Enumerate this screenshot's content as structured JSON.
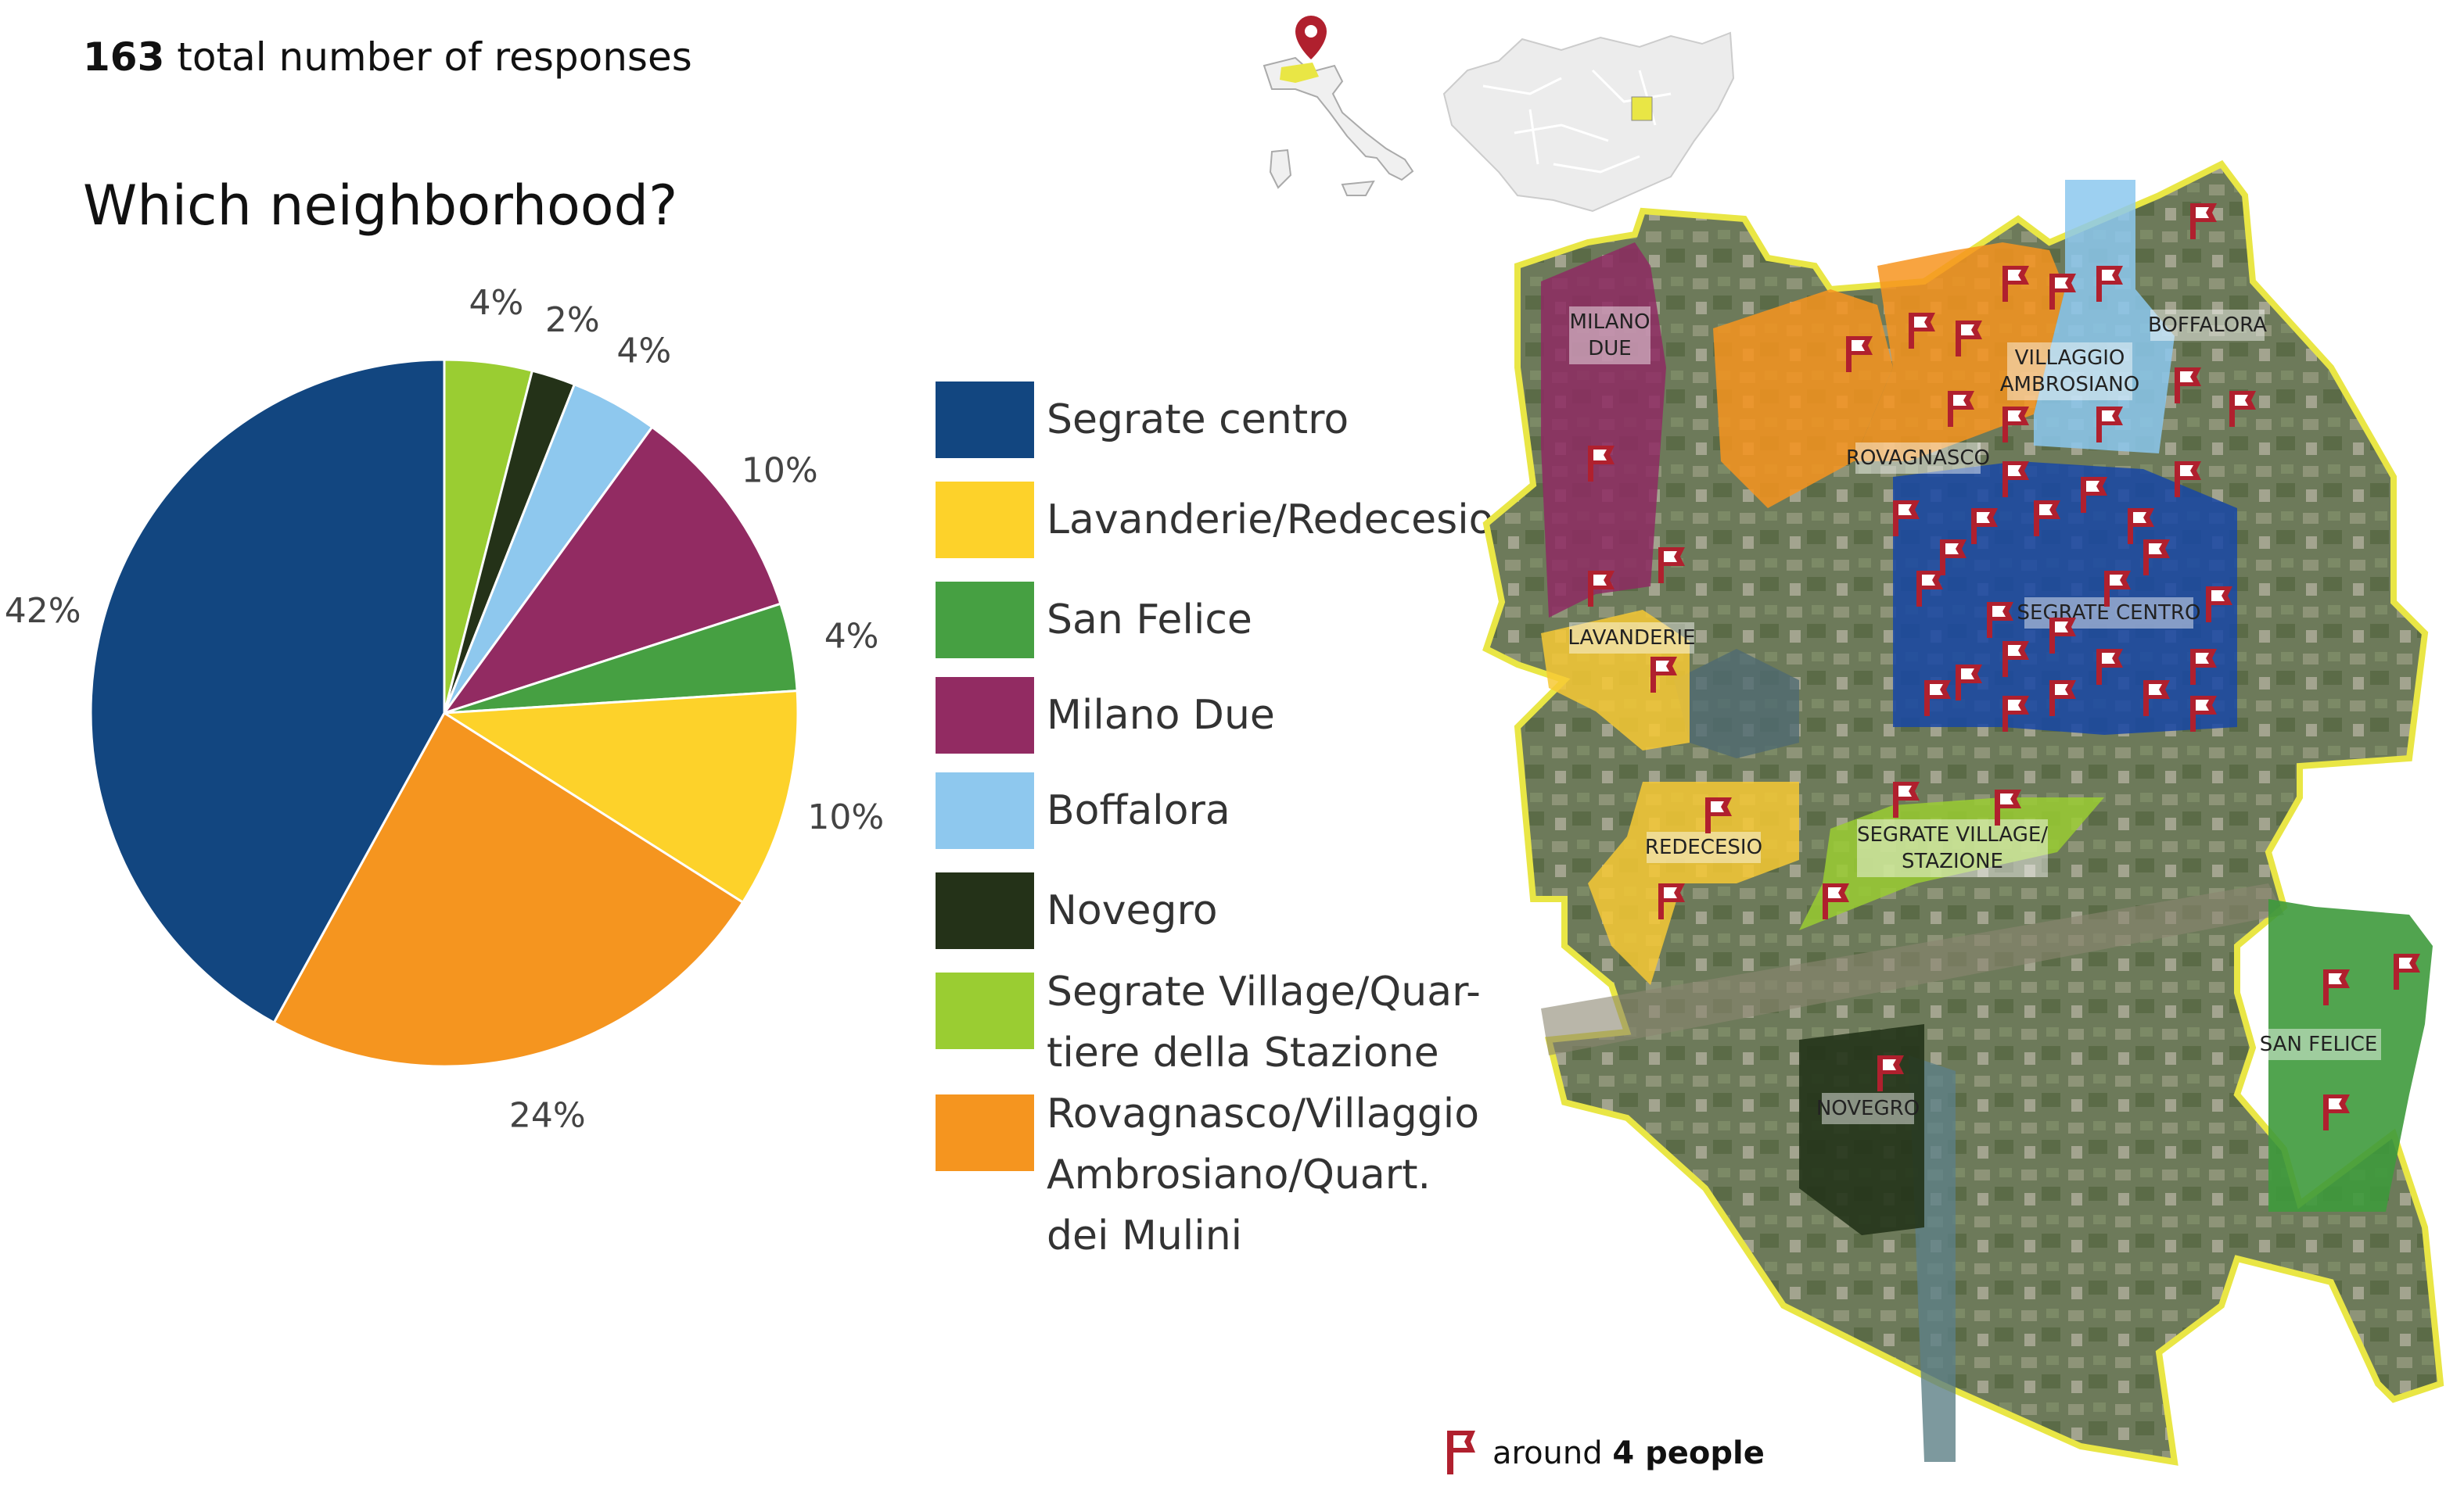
{
  "header": {
    "response_count": "163",
    "response_label": "total number of responses",
    "question": "Which neighborhood?"
  },
  "chart_data": {
    "type": "pie",
    "title": "Which neighborhood?",
    "slices": [
      {
        "label": "Segrate Village/Quartiere della Stazione",
        "value": 4,
        "display": "4%",
        "color": "#9ACD32"
      },
      {
        "label": "Novegro",
        "value": 2,
        "display": "2%",
        "color": "#243218"
      },
      {
        "label": "Boffalora",
        "value": 4,
        "display": "4%",
        "color": "#8EC8EE"
      },
      {
        "label": "Milano Due",
        "value": 10,
        "display": "10%",
        "color": "#922B62"
      },
      {
        "label": "San Felice",
        "value": 4,
        "display": "4%",
        "color": "#46A042"
      },
      {
        "label": "Lavanderie/Redecesio",
        "value": 10,
        "display": "10%",
        "color": "#FDD22A"
      },
      {
        "label": "Rovagnasco/Villaggio Ambrosiano/Quart. dei Mulini",
        "value": 24,
        "display": "24%",
        "color": "#F5951F"
      },
      {
        "label": "Segrate centro",
        "value": 42,
        "display": "42%",
        "color": "#124680"
      }
    ],
    "legend": [
      {
        "label": "Segrate centro",
        "color": "#124680"
      },
      {
        "label": "Lavanderie/Redecesio",
        "color": "#FDD22A"
      },
      {
        "label": "San Felice",
        "color": "#46A042"
      },
      {
        "label": "Milano Due",
        "color": "#922B62"
      },
      {
        "label": "Boffalora",
        "color": "#8EC8EE"
      },
      {
        "label": "Novegro",
        "color": "#243218"
      },
      {
        "label": "Segrate Village/Quar-\ntiere della Stazione",
        "color": "#9ACD32"
      },
      {
        "label": "Rovagnasco/Villaggio\nAmbrosiano/Quart.\ndei Mulini",
        "color": "#F5951F"
      }
    ],
    "legend_placement": "right"
  },
  "map": {
    "districts": [
      {
        "label": "MILANO\nDUE",
        "color": "#8E2A63"
      },
      {
        "label": "VILLAGGIO\nAMBROSIANO",
        "color": "#F7941E"
      },
      {
        "label": "BOFFALORA",
        "color": "#8CC8EE"
      },
      {
        "label": "ROVAGNASCO",
        "color": "#F7941E"
      },
      {
        "label": "SEGRATE CENTRO",
        "color": "#1747A6"
      },
      {
        "label": "LAVANDERIE",
        "color": "#F7C935"
      },
      {
        "label": "REDECESIO",
        "color": "#F7C935"
      },
      {
        "label": "SEGRATE VILLAGE/\nSTAZIONE",
        "color": "#9ACD32"
      },
      {
        "label": "NOVEGRO",
        "color": "#233419"
      },
      {
        "label": "SAN FELICE",
        "color": "#3E9A3C"
      }
    ],
    "boundary_color": "#E9E645",
    "marker_color": "#B0202E"
  },
  "footnote": {
    "prefix": "around",
    "bold": "4 people",
    "icon": "flag-icon"
  }
}
